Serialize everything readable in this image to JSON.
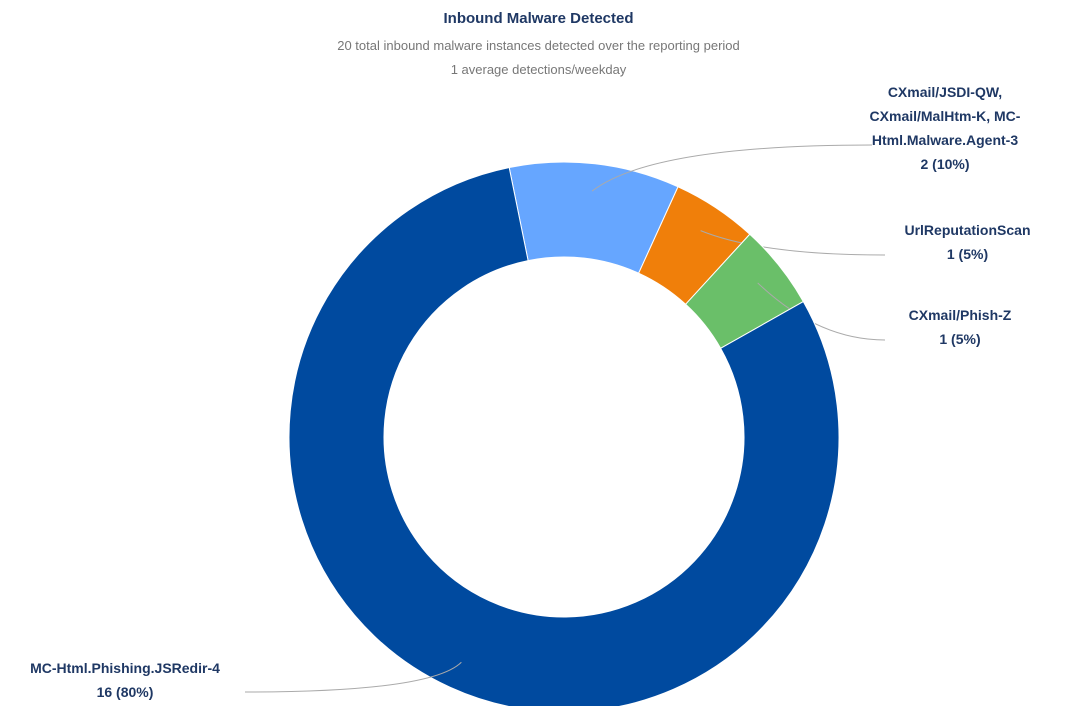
{
  "chart_data": {
    "type": "donut",
    "title": "Inbound Malware Detected",
    "subtitle": [
      "20 total inbound malware instances detected over the reporting period",
      "1 average detections/weekday"
    ],
    "categories": [
      "CXmail/JSDI-QW, CXmail/MalHtm-K, MC-Html.Malware.Agent-3",
      "UrlReputationScan",
      "CXmail/Phish-Z",
      "MC-Html.Phishing.JSRedir-4"
    ],
    "values": [
      2,
      1,
      1,
      16
    ],
    "value_labels": [
      "2 (10%)",
      "1 (5%)",
      "1 (5%)",
      "16 (80%)"
    ],
    "colors": [
      "#66a6ff",
      "#f07f0a",
      "#6abf69",
      "#004a9f"
    ]
  }
}
